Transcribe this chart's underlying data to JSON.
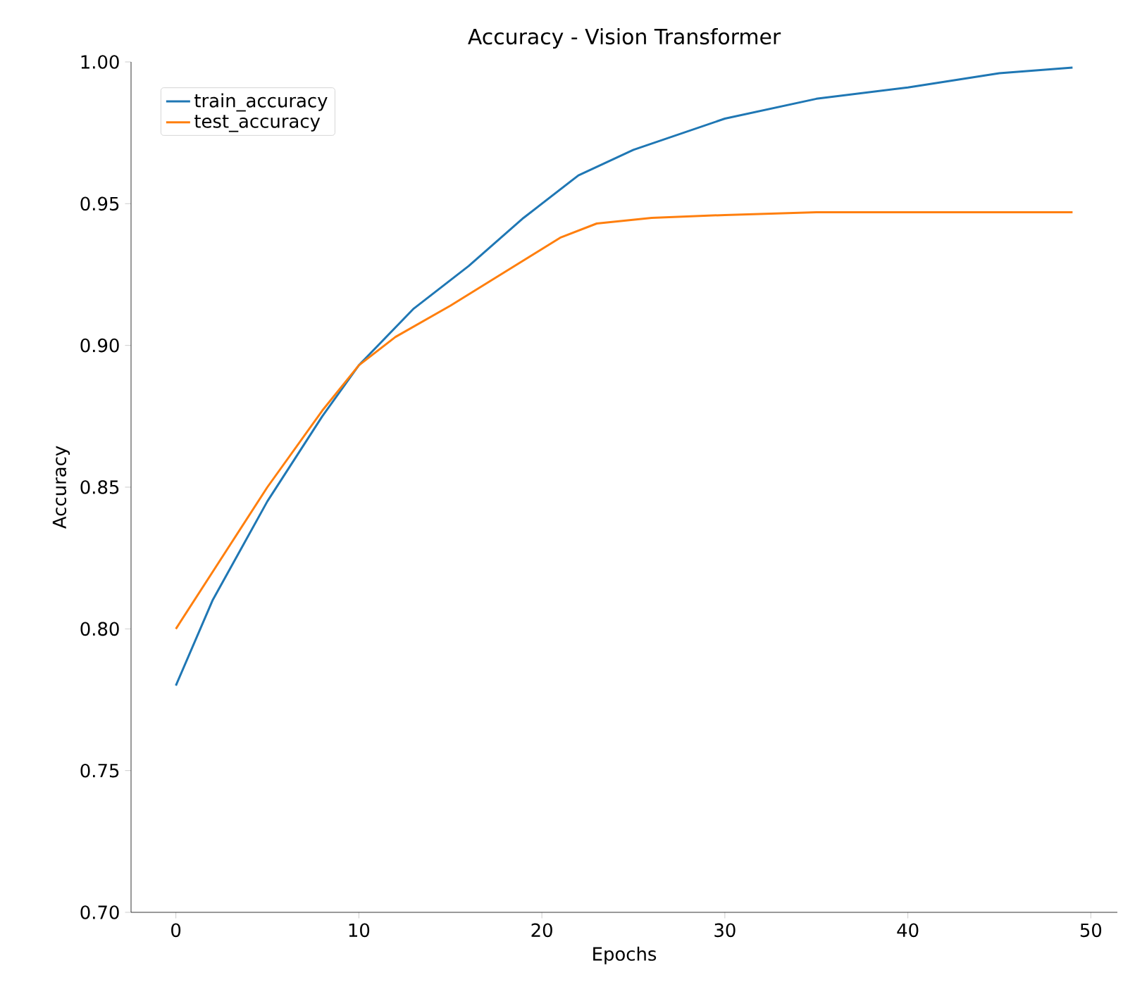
{
  "chart_data": {
    "type": "line",
    "title": "Accuracy - Vision Transformer",
    "xlabel": "Epochs",
    "ylabel": "Accuracy",
    "xlim": [
      -2.45,
      51.45
    ],
    "ylim": [
      0.7,
      1.0
    ],
    "xticks": [
      0,
      10,
      20,
      30,
      40,
      50
    ],
    "yticks": [
      {
        "value": 0.7,
        "label": "0.70"
      },
      {
        "value": 0.75,
        "label": "0.75"
      },
      {
        "value": 0.8,
        "label": "0.80"
      },
      {
        "value": 0.85,
        "label": "0.85"
      },
      {
        "value": 0.9,
        "label": "0.90"
      },
      {
        "value": 0.95,
        "label": "0.95"
      },
      {
        "value": 1.0,
        "label": "1.00"
      }
    ],
    "legend": "top left",
    "grid": false,
    "marker": "none",
    "line_style": "solid",
    "series": [
      {
        "name": "train_accuracy",
        "color": "#1f77b4",
        "x": [
          0,
          2,
          5,
          8,
          10,
          13,
          16,
          19,
          22,
          25,
          30,
          35,
          40,
          45,
          49
        ],
        "values": [
          0.78,
          0.81,
          0.845,
          0.875,
          0.893,
          0.913,
          0.928,
          0.945,
          0.96,
          0.969,
          0.98,
          0.987,
          0.991,
          0.996,
          0.998
        ]
      },
      {
        "name": "test_accuracy",
        "color": "#ff7f0e",
        "x": [
          0,
          3,
          5,
          8,
          10,
          12,
          15,
          18,
          21,
          23,
          26,
          30,
          35,
          40,
          49
        ],
        "values": [
          0.8,
          0.83,
          0.85,
          0.877,
          0.893,
          0.903,
          0.914,
          0.926,
          0.938,
          0.943,
          0.945,
          0.946,
          0.947,
          0.947,
          0.947
        ]
      }
    ]
  }
}
